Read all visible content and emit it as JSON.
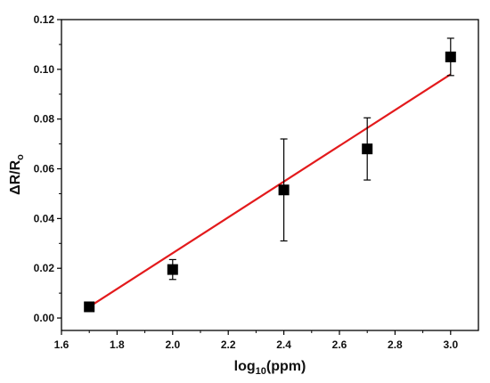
{
  "chart_data": {
    "type": "scatter",
    "xlabel": {
      "base": "log",
      "sub": "10",
      "rest": "(ppm)"
    },
    "ylabel": {
      "main": "ΔR/R",
      "sub": "o"
    },
    "xlim": [
      1.6,
      3.1
    ],
    "ylim": [
      -0.005,
      0.12
    ],
    "xticks": [
      "1.6",
      "1.8",
      "2.0",
      "2.2",
      "2.4",
      "2.6",
      "2.8",
      "3.0"
    ],
    "yticks": [
      "0.00",
      "0.02",
      "0.04",
      "0.06",
      "0.08",
      "0.10",
      "0.12"
    ],
    "series": [
      {
        "x": [
          1.7,
          2.0,
          2.4,
          2.7,
          3.0
        ],
        "y": [
          0.0045,
          0.0195,
          0.0515,
          0.068,
          0.105
        ],
        "error": [
          0.0005,
          0.004,
          0.0205,
          0.0125,
          0.0075
        ],
        "marker": "square",
        "color": "#000000"
      }
    ],
    "fit_line": {
      "x": [
        1.7,
        3.0
      ],
      "y": [
        0.0045,
        0.098
      ],
      "color": "#e31a1c"
    },
    "grid": false
  }
}
